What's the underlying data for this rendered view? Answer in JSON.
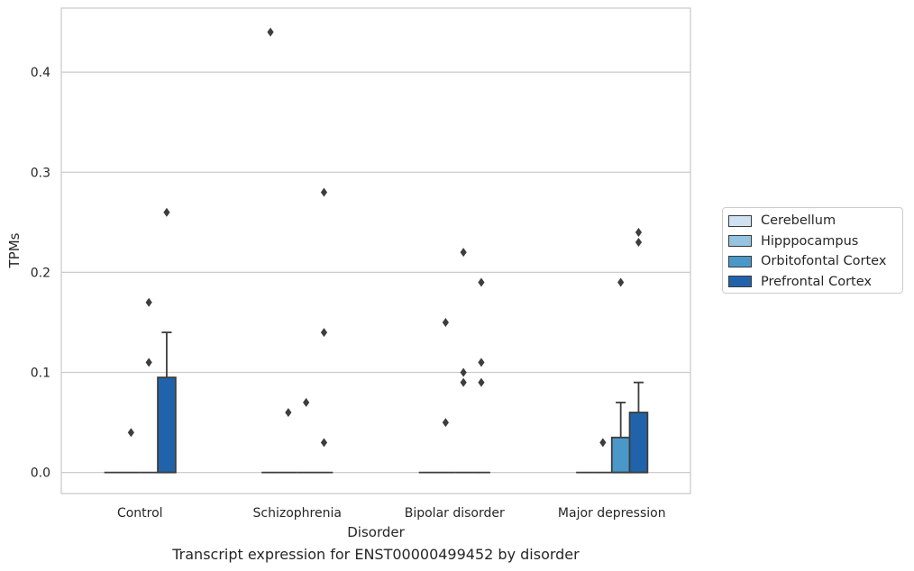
{
  "chart_data": {
    "type": "box",
    "title": "Transcript expression for ENST00000499452 by disorder",
    "xlabel": "Disorder",
    "ylabel": "TPMs",
    "ylim": [
      -0.021,
      0.464
    ],
    "yticks": [
      "0.0",
      "0.1",
      "0.2",
      "0.3",
      "0.4"
    ],
    "grid": true,
    "legend_position": "right",
    "categories": [
      "Control",
      "Schizophrenia",
      "Bipolar disorder",
      "Major depression"
    ],
    "series": [
      {
        "name": "Cerebellum",
        "color": "#d0e1f2",
        "boxes": [
          {
            "q1": 0,
            "q3": 0,
            "median": 0,
            "whisker_low": 0,
            "whisker_high": 0,
            "outliers": []
          },
          {
            "q1": 0,
            "q3": 0,
            "median": 0,
            "whisker_low": 0,
            "whisker_high": 0,
            "outliers": [
              0.44
            ]
          },
          {
            "q1": 0,
            "q3": 0,
            "median": 0,
            "whisker_low": 0,
            "whisker_high": 0,
            "outliers": []
          },
          {
            "q1": 0,
            "q3": 0,
            "median": 0,
            "whisker_low": 0,
            "whisker_high": 0,
            "outliers": []
          }
        ]
      },
      {
        "name": "Hipppocampus",
        "color": "#94c4df",
        "boxes": [
          {
            "q1": 0,
            "q3": 0,
            "median": 0,
            "whisker_low": 0,
            "whisker_high": 0,
            "outliers": [
              0.04
            ]
          },
          {
            "q1": 0,
            "q3": 0,
            "median": 0,
            "whisker_low": 0,
            "whisker_high": 0,
            "outliers": [
              0.06
            ]
          },
          {
            "q1": 0,
            "q3": 0,
            "median": 0,
            "whisker_low": 0,
            "whisker_high": 0,
            "outliers": [
              0.15,
              0.05
            ]
          },
          {
            "q1": 0,
            "q3": 0,
            "median": 0,
            "whisker_low": 0,
            "whisker_high": 0,
            "outliers": [
              0.03
            ]
          }
        ]
      },
      {
        "name": "Orbitofontal Cortex",
        "color": "#4a98c9",
        "boxes": [
          {
            "q1": 0,
            "q3": 0,
            "median": 0,
            "whisker_low": 0,
            "whisker_high": 0,
            "outliers": [
              0.17,
              0.11
            ]
          },
          {
            "q1": 0,
            "q3": 0,
            "median": 0,
            "whisker_low": 0,
            "whisker_high": 0,
            "outliers": [
              0.07
            ]
          },
          {
            "q1": 0,
            "q3": 0,
            "median": 0,
            "whisker_low": 0,
            "whisker_high": 0,
            "outliers": [
              0.22,
              0.1,
              0.09
            ]
          },
          {
            "q1": 0,
            "q3": 0.035,
            "median": 0,
            "whisker_low": 0,
            "whisker_high": 0.07,
            "outliers": [
              0.19
            ]
          }
        ]
      },
      {
        "name": "Prefrontal Cortex",
        "color": "#2163aa",
        "boxes": [
          {
            "q1": 0,
            "q3": 0.095,
            "median": 0,
            "whisker_low": 0,
            "whisker_high": 0.14,
            "outliers": [
              0.26
            ]
          },
          {
            "q1": 0,
            "q3": 0,
            "median": 0,
            "whisker_low": 0,
            "whisker_high": 0,
            "outliers": [
              0.28,
              0.14,
              0.03
            ]
          },
          {
            "q1": 0,
            "q3": 0,
            "median": 0,
            "whisker_low": 0,
            "whisker_high": 0,
            "outliers": [
              0.19,
              0.11,
              0.09
            ]
          },
          {
            "q1": 0,
            "q3": 0.06,
            "median": 0,
            "whisker_low": 0,
            "whisker_high": 0.09,
            "outliers": [
              0.24,
              0.23
            ]
          }
        ]
      }
    ]
  }
}
